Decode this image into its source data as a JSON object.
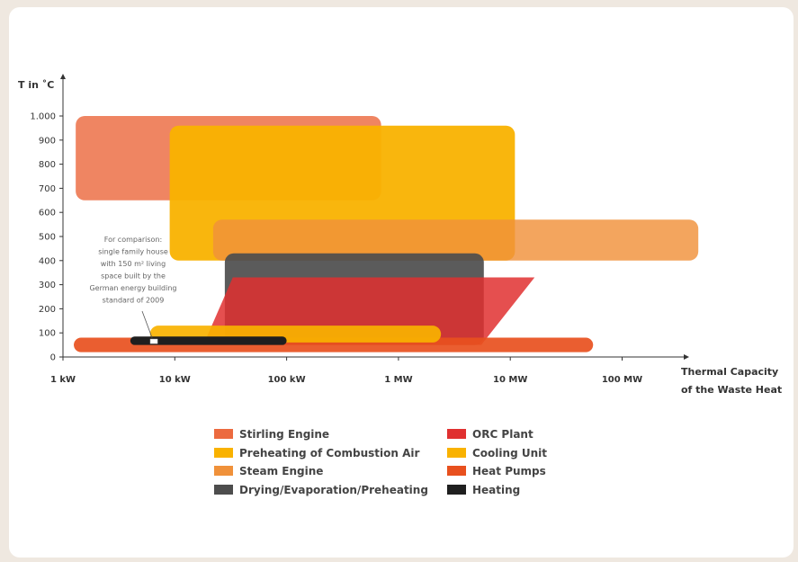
{
  "chart_data": {
    "type": "range-area",
    "ylabel": "T in ˚C",
    "xlabel_lines": [
      "Thermal Capacity",
      "of the Waste Heat"
    ],
    "x_scale": "log",
    "x_ticks": [
      {
        "value": 1,
        "label": "1 kW"
      },
      {
        "value": 10,
        "label": "10 kW"
      },
      {
        "value": 100,
        "label": "100 kW"
      },
      {
        "value": 1000,
        "label": "1 MW"
      },
      {
        "value": 10000,
        "label": "10 MW"
      },
      {
        "value": 100000,
        "label": "100 MW"
      }
    ],
    "y_ticks": [
      {
        "value": 0,
        "label": "0"
      },
      {
        "value": 100,
        "label": "100"
      },
      {
        "value": 200,
        "label": "200"
      },
      {
        "value": 300,
        "label": "300"
      },
      {
        "value": 400,
        "label": "400"
      },
      {
        "value": 500,
        "label": "500"
      },
      {
        "value": 600,
        "label": "600"
      },
      {
        "value": 700,
        "label": "700"
      },
      {
        "value": 800,
        "label": "800"
      },
      {
        "value": 900,
        "label": "900"
      },
      {
        "value": 1000,
        "label": "1.000"
      }
    ],
    "units_x": "kW",
    "ylim": [
      0,
      1000
    ],
    "series": [
      {
        "name": "Stirling Engine",
        "color": "#ec6a3f",
        "shape": "rect",
        "x_min_kw": 1.3,
        "x_max_kw": 700,
        "t_min": 650,
        "t_max": 1000
      },
      {
        "name": "Preheating of Combustion Air",
        "color": "#f9b200",
        "shape": "rect",
        "x_min_kw": 9,
        "x_max_kw": 11000,
        "t_min": 400,
        "t_max": 960
      },
      {
        "name": "Steam Engine",
        "color": "#f0913a",
        "shape": "rect",
        "x_min_kw": 22,
        "x_max_kw": 480000,
        "t_min": 400,
        "t_max": 570
      },
      {
        "name": "Drying/Evaporation/Preheating",
        "color": "#4d4d4d",
        "shape": "rect",
        "x_min_kw": 28,
        "x_max_kw": 5800,
        "t_min": 50,
        "t_max": 430
      },
      {
        "name": "ORC Plant",
        "color": "#e03030",
        "shape": "parallelogram",
        "bottom_min_kw": 18,
        "bottom_max_kw": 5500,
        "top_min_kw": 33,
        "top_max_kw": 16500,
        "t_min": 50,
        "t_max": 330
      },
      {
        "name": "Cooling Unit",
        "color": "#f9b200",
        "shape": "rect",
        "x_min_kw": 6,
        "x_max_kw": 2400,
        "t_min": 60,
        "t_max": 130
      },
      {
        "name": "Heat Pumps",
        "color": "#e8501e",
        "shape": "rect",
        "x_min_kw": 1.25,
        "x_max_kw": 55000,
        "t_min": 20,
        "t_max": 80
      },
      {
        "name": "Heating",
        "color": "#1f1f1f",
        "shape": "rect",
        "x_min_kw": 4,
        "x_max_kw": 100,
        "t_min": 50,
        "t_max": 85
      }
    ],
    "annotation": {
      "lines": [
        "For comparison:",
        "single family house",
        "with 150 m² living",
        "space built by the",
        "German energy building",
        "standard of 2009"
      ],
      "point_kw": 6.5,
      "point_t": 65
    },
    "legend": {
      "placement": "bottom",
      "left_column": [
        "Stirling Engine",
        "Preheating of Combustion Air",
        "Steam Engine",
        "Drying/Evaporation/Preheating"
      ],
      "right_column": [
        "ORC Plant",
        "Cooling Unit",
        "Heat Pumps",
        "Heating"
      ]
    }
  }
}
